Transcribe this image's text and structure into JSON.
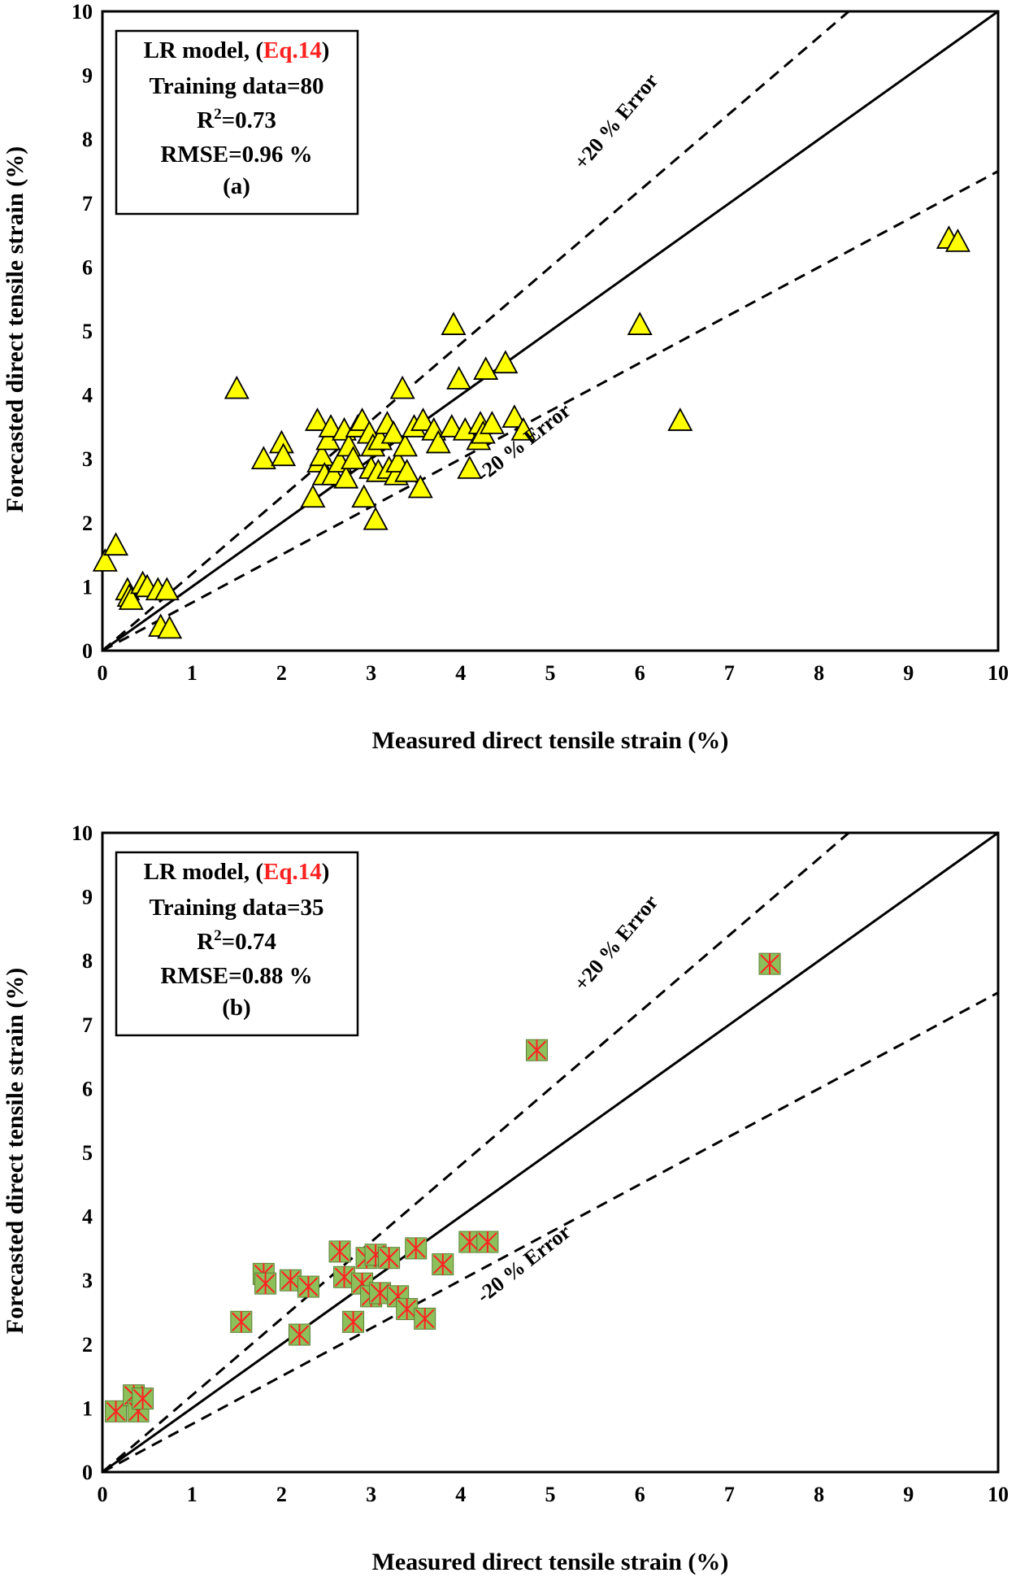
{
  "chart_data": [
    {
      "type": "scatter",
      "panel": "(a)",
      "xlabel": "Measured direct tensile strain (%)",
      "ylabel": "Forecasted direct tensile strain (%)",
      "xlim": [
        0,
        10
      ],
      "ylim": [
        0,
        10
      ],
      "xticks": [
        "0",
        "1",
        "2",
        "3",
        "4",
        "5",
        "6",
        "7",
        "8",
        "9",
        "10"
      ],
      "yticks": [
        "0",
        "1",
        "2",
        "3",
        "4",
        "5",
        "6",
        "7",
        "8",
        "9",
        "10"
      ],
      "marker": "triangle",
      "marker_fill": "#ffff00",
      "info_box": {
        "line1_prefix": "LR model, (",
        "line1_eq": "Eq.14",
        "line1_suffix": ")",
        "line2": "Training data=80",
        "r2_prefix": "R",
        "r2_sup": "2",
        "r2_suffix": "=0.73",
        "line4": "RMSE=0.96 %",
        "line5": "(a)"
      },
      "eq_color": "#ff2020",
      "upper_error_label": "+20 % Error",
      "lower_error_label": "-20 % Error",
      "points": [
        [
          0.03,
          1.4
        ],
        [
          0.15,
          1.65
        ],
        [
          0.28,
          0.95
        ],
        [
          0.3,
          0.85
        ],
        [
          0.32,
          0.8
        ],
        [
          0.45,
          1.05
        ],
        [
          0.5,
          1.0
        ],
        [
          0.62,
          0.95
        ],
        [
          0.65,
          0.38
        ],
        [
          0.75,
          0.35
        ],
        [
          0.72,
          0.95
        ],
        [
          1.5,
          4.1
        ],
        [
          1.8,
          3.0
        ],
        [
          2.0,
          3.25
        ],
        [
          2.02,
          3.05
        ],
        [
          2.35,
          2.4
        ],
        [
          2.4,
          3.6
        ],
        [
          2.42,
          2.95
        ],
        [
          2.45,
          3.05
        ],
        [
          2.48,
          2.75
        ],
        [
          2.52,
          3.3
        ],
        [
          2.55,
          3.5
        ],
        [
          2.58,
          2.75
        ],
        [
          2.65,
          2.95
        ],
        [
          2.7,
          3.45
        ],
        [
          2.72,
          2.7
        ],
        [
          2.75,
          3.2
        ],
        [
          2.8,
          3.0
        ],
        [
          2.85,
          3.5
        ],
        [
          2.9,
          3.6
        ],
        [
          2.92,
          2.4
        ],
        [
          2.98,
          3.4
        ],
        [
          3.0,
          2.85
        ],
        [
          3.02,
          3.2
        ],
        [
          3.05,
          2.05
        ],
        [
          3.08,
          2.8
        ],
        [
          3.1,
          3.3
        ],
        [
          3.18,
          3.55
        ],
        [
          3.2,
          2.85
        ],
        [
          3.25,
          3.4
        ],
        [
          3.28,
          2.75
        ],
        [
          3.3,
          2.95
        ],
        [
          3.35,
          4.1
        ],
        [
          3.38,
          3.2
        ],
        [
          3.4,
          2.8
        ],
        [
          3.48,
          3.5
        ],
        [
          3.55,
          2.55
        ],
        [
          3.58,
          3.6
        ],
        [
          3.7,
          3.45
        ],
        [
          3.75,
          3.25
        ],
        [
          3.9,
          3.5
        ],
        [
          3.92,
          5.1
        ],
        [
          3.98,
          4.25
        ],
        [
          4.05,
          3.45
        ],
        [
          4.1,
          2.85
        ],
        [
          4.2,
          3.3
        ],
        [
          4.22,
          3.55
        ],
        [
          4.25,
          3.4
        ],
        [
          4.28,
          4.4
        ],
        [
          4.35,
          3.55
        ],
        [
          4.5,
          4.5
        ],
        [
          4.6,
          3.65
        ],
        [
          4.7,
          3.45
        ],
        [
          6.0,
          5.1
        ],
        [
          6.45,
          3.6
        ],
        [
          9.45,
          6.45
        ],
        [
          9.55,
          6.4
        ]
      ]
    },
    {
      "type": "scatter",
      "panel": "(b)",
      "xlabel": "Measured direct tensile strain (%)",
      "ylabel": "Forecasted direct tensile strain (%)",
      "xlim": [
        0,
        10
      ],
      "ylim": [
        0,
        10
      ],
      "xticks": [
        "0",
        "1",
        "2",
        "3",
        "4",
        "5",
        "6",
        "7",
        "8",
        "9",
        "10"
      ],
      "yticks": [
        "0",
        "1",
        "2",
        "3",
        "4",
        "5",
        "6",
        "7",
        "8",
        "9",
        "10"
      ],
      "marker": "square-with-asterisk",
      "marker_fill": "#8dbf5a",
      "marker_star": "#ff2020",
      "info_box": {
        "line1_prefix": "LR model, (",
        "line1_eq": "Eq.14",
        "line1_suffix": ")",
        "line2": "Training data=35",
        "r2_prefix": "R",
        "r2_sup": "2",
        "r2_suffix": "=0.74",
        "line4": "RMSE=0.88 %",
        "line5": "(b)"
      },
      "eq_color": "#ff2020",
      "upper_error_label": "+20 % Error",
      "lower_error_label": "-20 % Error",
      "points": [
        [
          0.15,
          0.95
        ],
        [
          0.35,
          1.2
        ],
        [
          0.4,
          0.95
        ],
        [
          0.45,
          1.15
        ],
        [
          1.55,
          2.35
        ],
        [
          1.8,
          3.1
        ],
        [
          1.82,
          2.95
        ],
        [
          2.1,
          3.0
        ],
        [
          2.2,
          2.15
        ],
        [
          2.3,
          2.9
        ],
        [
          2.65,
          3.45
        ],
        [
          2.7,
          3.05
        ],
        [
          2.8,
          2.35
        ],
        [
          2.9,
          2.95
        ],
        [
          2.95,
          3.35
        ],
        [
          3.0,
          2.75
        ],
        [
          3.05,
          3.4
        ],
        [
          3.1,
          2.8
        ],
        [
          3.2,
          3.35
        ],
        [
          3.3,
          2.75
        ],
        [
          3.4,
          2.55
        ],
        [
          3.5,
          3.5
        ],
        [
          3.6,
          2.4
        ],
        [
          3.8,
          3.25
        ],
        [
          4.1,
          3.6
        ],
        [
          4.3,
          3.6
        ],
        [
          4.85,
          6.6
        ],
        [
          7.45,
          7.95
        ]
      ]
    }
  ]
}
